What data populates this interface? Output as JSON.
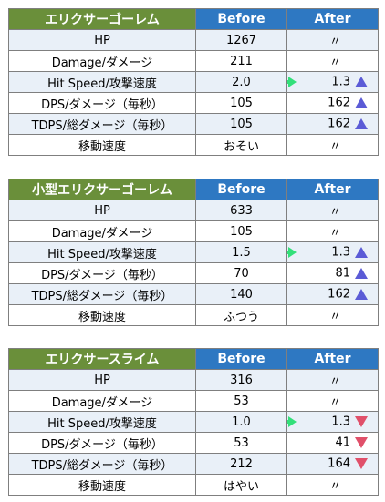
{
  "colors": {
    "name_header_bg": "#6a8f3a",
    "col_header_bg": "#2e78c2",
    "row_alt_bg": "#e9f0f8",
    "up_triangle": "#5b5bd6",
    "down_triangle": "#e0506a",
    "arrow": "#33e07a"
  },
  "tables": [
    {
      "name": "エリクサーゴーレム",
      "before_header": "Before",
      "after_header": "After",
      "rows": [
        {
          "label": "HP",
          "before": "1267",
          "after": "〃",
          "arrow": false,
          "trend": "none"
        },
        {
          "label": "Damage/ダメージ",
          "before": "211",
          "after": "〃",
          "arrow": false,
          "trend": "none"
        },
        {
          "label": "Hit Speed/攻撃速度",
          "before": "2.0",
          "after": "1.3",
          "arrow": true,
          "trend": "up"
        },
        {
          "label": "DPS/ダメージ（毎秒）",
          "before": "105",
          "after": "162",
          "arrow": false,
          "trend": "up"
        },
        {
          "label": "TDPS/総ダメージ（毎秒）",
          "before": "105",
          "after": "162",
          "arrow": false,
          "trend": "up"
        },
        {
          "label": "移動速度",
          "before": "おそい",
          "after": "〃",
          "arrow": false,
          "trend": "none"
        }
      ]
    },
    {
      "name": "小型エリクサーゴーレム",
      "before_header": "Before",
      "after_header": "After",
      "rows": [
        {
          "label": "HP",
          "before": "633",
          "after": "〃",
          "arrow": false,
          "trend": "none"
        },
        {
          "label": "Damage/ダメージ",
          "before": "105",
          "after": "〃",
          "arrow": false,
          "trend": "none"
        },
        {
          "label": "Hit Speed/攻撃速度",
          "before": "1.5",
          "after": "1.3",
          "arrow": true,
          "trend": "up"
        },
        {
          "label": "DPS/ダメージ（毎秒）",
          "before": "70",
          "after": "81",
          "arrow": false,
          "trend": "up"
        },
        {
          "label": "TDPS/総ダメージ（毎秒）",
          "before": "140",
          "after": "162",
          "arrow": false,
          "trend": "up"
        },
        {
          "label": "移動速度",
          "before": "ふつう",
          "after": "〃",
          "arrow": false,
          "trend": "none"
        }
      ]
    },
    {
      "name": "エリクサースライム",
      "before_header": "Before",
      "after_header": "After",
      "rows": [
        {
          "label": "HP",
          "before": "316",
          "after": "〃",
          "arrow": false,
          "trend": "none"
        },
        {
          "label": "Damage/ダメージ",
          "before": "53",
          "after": "〃",
          "arrow": false,
          "trend": "none"
        },
        {
          "label": "Hit Speed/攻撃速度",
          "before": "1.0",
          "after": "1.3",
          "arrow": true,
          "trend": "down"
        },
        {
          "label": "DPS/ダメージ（毎秒）",
          "before": "53",
          "after": "41",
          "arrow": false,
          "trend": "down"
        },
        {
          "label": "TDPS/総ダメージ（毎秒）",
          "before": "212",
          "after": "164",
          "arrow": false,
          "trend": "down"
        },
        {
          "label": "移動速度",
          "before": "はやい",
          "after": "〃",
          "arrow": false,
          "trend": "none"
        }
      ]
    }
  ]
}
